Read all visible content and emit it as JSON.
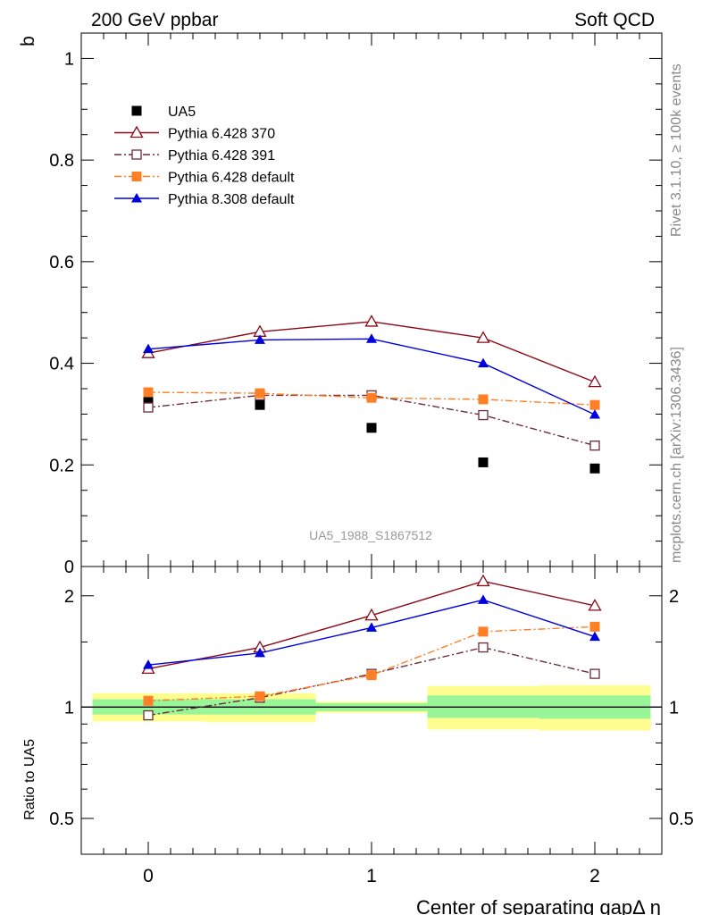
{
  "header": {
    "left": "200 GeV ppbar",
    "right": "Soft QCD"
  },
  "side_text": {
    "rivet": "Rivet 3.1.10, ≥ 100k events",
    "source": "mcplots.cern.ch [arXiv:1306.3436]"
  },
  "watermark": "UA5_1988_S1867512",
  "chart_data": [
    {
      "type": "scatter",
      "ylabel": "b",
      "xlim": [
        -0.3,
        2.3
      ],
      "ylim": [
        0,
        1.05
      ],
      "yticks": [
        0,
        0.2,
        0.4,
        0.6,
        0.8,
        1
      ],
      "ytick_labels": [
        "0",
        "0.2",
        "0.4",
        "0.6",
        "0.8",
        "1"
      ],
      "legend_position": "top-left",
      "series": [
        {
          "name": "UA5",
          "style": "data",
          "color": "#000000",
          "marker": "filled-square",
          "line": "none",
          "x": [
            0,
            0.5,
            1,
            1.5,
            2
          ],
          "y": [
            0.33,
            0.318,
            0.273,
            0.205,
            0.193
          ]
        },
        {
          "name": "Pythia 6.428 370",
          "color": "#8b0a17",
          "marker": "open-triangle",
          "line": "solid",
          "x": [
            0,
            0.5,
            1,
            1.5,
            2
          ],
          "y": [
            0.42,
            0.462,
            0.482,
            0.45,
            0.363
          ]
        },
        {
          "name": "Pythia 6.428 391",
          "color": "#6b2d3b",
          "marker": "open-square",
          "line": "dash-dot",
          "x": [
            0,
            0.5,
            1,
            1.5,
            2
          ],
          "y": [
            0.313,
            0.337,
            0.337,
            0.298,
            0.238
          ]
        },
        {
          "name": "Pythia 6.428 default",
          "color": "#ff7f27",
          "marker": "filled-square",
          "line": "dash-dot",
          "x": [
            0,
            0.5,
            1,
            1.5,
            2
          ],
          "y": [
            0.343,
            0.341,
            0.332,
            0.329,
            0.318
          ]
        },
        {
          "name": "Pythia 8.308 default",
          "color": "#0000dd",
          "marker": "filled-triangle",
          "line": "solid",
          "x": [
            0,
            0.5,
            1,
            1.5,
            2
          ],
          "y": [
            0.428,
            0.446,
            0.448,
            0.4,
            0.299
          ]
        }
      ]
    },
    {
      "type": "line",
      "ylabel": "Ratio to UA5",
      "xlabel": "Center of separating gapΔ η",
      "xlim": [
        -0.3,
        2.3
      ],
      "ylim": [
        0.4,
        2.4
      ],
      "yscale": "log",
      "xticks": [
        0,
        1,
        2
      ],
      "xtick_labels": [
        "0",
        "1",
        "2"
      ],
      "yticks": [
        0.5,
        1,
        2
      ],
      "ytick_labels": [
        "0.5",
        "1",
        "2"
      ],
      "error_bands": {
        "bins": [
          [
            -0.25,
            0.25
          ],
          [
            0.25,
            0.75
          ],
          [
            0.75,
            1.25
          ],
          [
            1.25,
            1.75
          ],
          [
            1.75,
            2.25
          ]
        ],
        "stat": [
          [
            0.955,
            1.05
          ],
          [
            0.955,
            1.05
          ],
          [
            0.975,
            1.025
          ],
          [
            0.935,
            1.075
          ],
          [
            0.93,
            1.075
          ]
        ],
        "total": [
          [
            0.915,
            1.09
          ],
          [
            0.91,
            1.09
          ],
          [
            0.965,
            1.035
          ],
          [
            0.87,
            1.14
          ],
          [
            0.865,
            1.145
          ]
        ],
        "stat_color": "#98f598",
        "total_color": "#fffe8f"
      },
      "series": [
        {
          "name": "Pythia 6.428 370",
          "x": [
            0,
            0.5,
            1,
            1.5,
            2
          ],
          "y": [
            1.27,
            1.45,
            1.77,
            2.19,
            1.88
          ]
        },
        {
          "name": "Pythia 6.428 391",
          "x": [
            0,
            0.5,
            1,
            1.5,
            2
          ],
          "y": [
            0.95,
            1.06,
            1.23,
            1.45,
            1.23
          ]
        },
        {
          "name": "Pythia 6.428 default",
          "x": [
            0,
            0.5,
            1,
            1.5,
            2
          ],
          "y": [
            1.04,
            1.07,
            1.22,
            1.6,
            1.65
          ]
        },
        {
          "name": "Pythia 8.308 default",
          "x": [
            0,
            0.5,
            1,
            1.5,
            2
          ],
          "y": [
            1.3,
            1.4,
            1.64,
            1.95,
            1.55
          ]
        }
      ]
    }
  ]
}
